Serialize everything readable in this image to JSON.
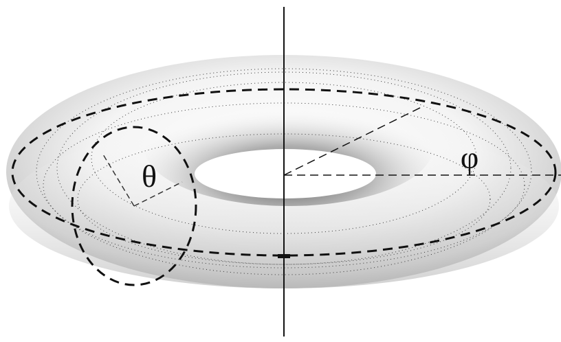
{
  "labels": {
    "theta": "θ",
    "phi": "φ"
  }
}
